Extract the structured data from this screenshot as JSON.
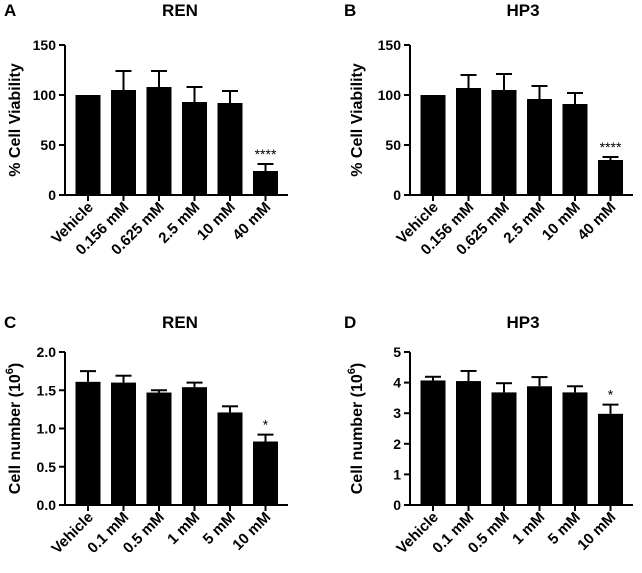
{
  "chart_data": [
    {
      "type": "bar",
      "panel": "A",
      "title": "REN",
      "ylabel": "% Cell Viability",
      "xlabel": "",
      "ylim": [
        0,
        150
      ],
      "yticks": [
        "0",
        "50",
        "100",
        "150"
      ],
      "categories": [
        "Vehicle",
        "0.156 mM",
        "0.625 mM",
        "2.5 mM",
        "10 mM",
        "40 mM"
      ],
      "values": [
        100,
        105,
        108,
        93,
        92,
        24
      ],
      "errors": [
        0,
        19,
        16,
        15,
        12,
        7
      ],
      "annotations": [
        "",
        "",
        "",
        "",
        "",
        "****"
      ]
    },
    {
      "type": "bar",
      "panel": "B",
      "title": "HP3",
      "ylabel": "% Cell Viability",
      "xlabel": "",
      "ylim": [
        0,
        150
      ],
      "yticks": [
        "0",
        "50",
        "100",
        "150"
      ],
      "categories": [
        "Vehicle",
        "0.156 mM",
        "0.625 mM",
        "2.5 mM",
        "10 mM",
        "40 mM"
      ],
      "values": [
        100,
        107,
        105,
        96,
        91,
        35
      ],
      "errors": [
        0,
        13,
        16,
        13,
        11,
        3
      ],
      "annotations": [
        "",
        "",
        "",
        "",
        "",
        "****"
      ]
    },
    {
      "type": "bar",
      "panel": "C",
      "title": "REN",
      "ylabel": "Cell number (10",
      "ylabel_sup": "6",
      "ylabel_end": ")",
      "xlabel": "",
      "ylim": [
        0,
        2.0
      ],
      "yticks": [
        "0.0",
        "0.5",
        "1.0",
        "1.5",
        "2.0"
      ],
      "categories": [
        "Vehicle",
        "0.1 mM",
        "0.5 mM",
        "1 mM",
        "5 mM",
        "10 mM"
      ],
      "values": [
        1.61,
        1.6,
        1.47,
        1.54,
        1.21,
        0.83
      ],
      "errors": [
        0.14,
        0.09,
        0.03,
        0.06,
        0.08,
        0.09
      ],
      "annotations": [
        "",
        "",
        "",
        "",
        "",
        "*"
      ]
    },
    {
      "type": "bar",
      "panel": "D",
      "title": "HP3",
      "ylabel": "Cell number (10",
      "ylabel_sup": "6",
      "ylabel_end": ")",
      "xlabel": "",
      "ylim": [
        0,
        5
      ],
      "yticks": [
        "0",
        "1",
        "2",
        "3",
        "4",
        "5"
      ],
      "categories": [
        "Vehicle",
        "0.1 mM",
        "0.5 mM",
        "1 mM",
        "5 mM",
        "10 mM"
      ],
      "values": [
        4.07,
        4.05,
        3.68,
        3.88,
        3.68,
        2.98
      ],
      "errors": [
        0.12,
        0.33,
        0.3,
        0.3,
        0.2,
        0.3
      ],
      "annotations": [
        "",
        "",
        "",
        "",
        "",
        "*"
      ]
    }
  ]
}
